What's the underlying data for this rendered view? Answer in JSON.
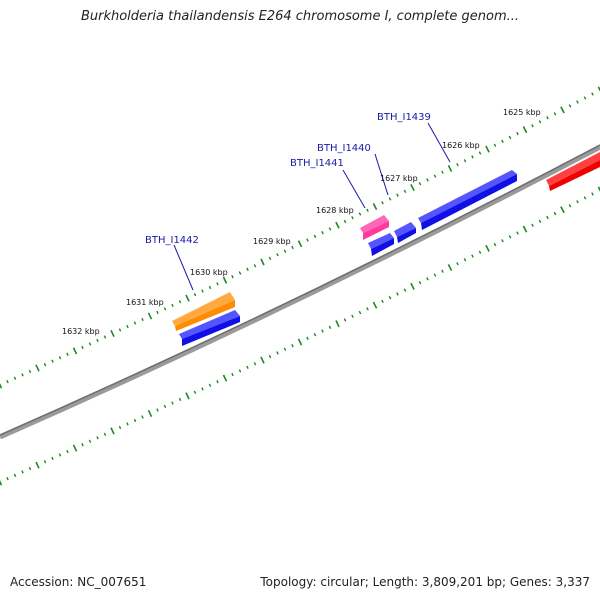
{
  "title": "Burkholderia thailandensis E264 chromosome I, complete genom...",
  "accession": "Accession: NC_007651",
  "summary": "Topology: circular; Length: 3,809,201 bp; Genes: 3,337",
  "colors": {
    "backbone": "#8a8a8a",
    "tick": "#1a8a1a",
    "label_line": "#1a1aa8",
    "gene_blue": "#1010e6",
    "gene_orange": "#ff8c00",
    "gene_pink": "#ff3c9c",
    "gene_red": "#ee0000"
  },
  "kbp_labels": [
    "1625 kbp",
    "1626 kbp",
    "1627 kbp",
    "1628 kbp",
    "1629 kbp",
    "1630 kbp",
    "1631 kbp",
    "1632 kbp"
  ],
  "gene_labels": [
    "BTH_I1439",
    "BTH_I1440",
    "BTH_I1441",
    "BTH_I1442"
  ]
}
